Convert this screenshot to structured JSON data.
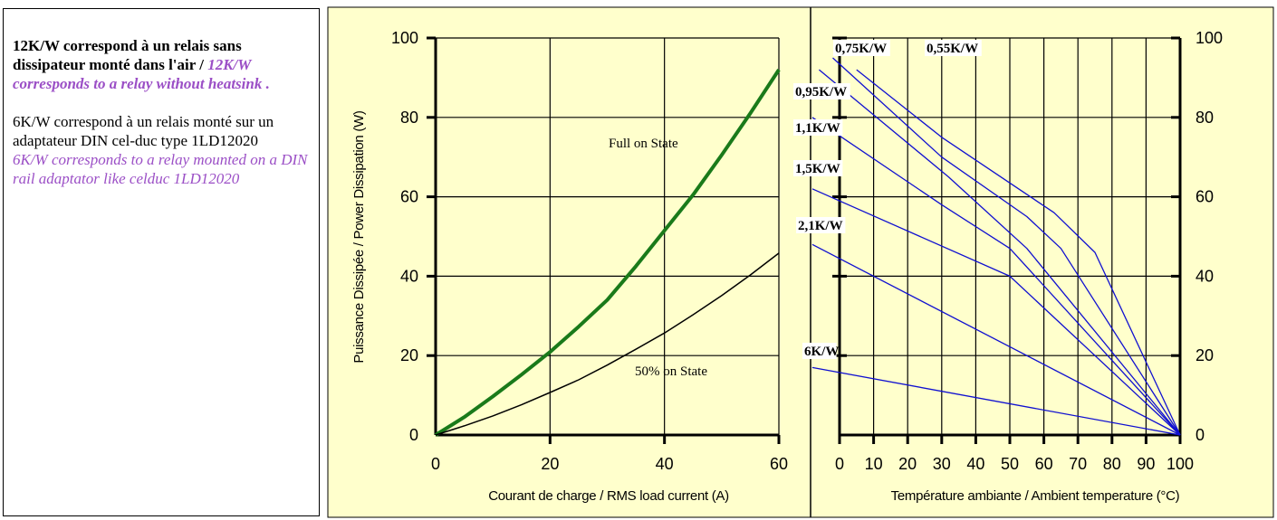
{
  "side_panel": {
    "p1_fr": "12K/W correspond à un relais sans dissipateur monté dans l'air /",
    "p1_en": "12K/W corresponds to a relay without heatsink .",
    "p2_fr": "6K/W correspond à un relais monté sur un adaptateur DIN cel-duc type 1LD12020",
    "p2_en": "6K/W corresponds to a relay mounted on a DIN rail adaptator like celduc 1LD12020"
  },
  "colors": {
    "plot_bg": "#ffffcc",
    "full_on_state": "#1a7a1a",
    "fifty_on_state": "#000000",
    "thermal_lines": "#1010d0",
    "english_text": "#9b4fc6"
  },
  "chart_data": [
    {
      "type": "line",
      "xlabel": "Courant de charge / RMS load current (A)",
      "ylabel": "Puissance Dissipée / Power Dissipation (W)",
      "xlim": [
        0,
        60
      ],
      "ylim": [
        0,
        100
      ],
      "x_ticks": [
        "0",
        "20",
        "40",
        "60"
      ],
      "y_ticks": [
        "0",
        "20",
        "40",
        "60",
        "80",
        "100"
      ],
      "grid": true,
      "series": [
        {
          "name": "Full on State",
          "x": [
            0,
            5,
            10,
            15,
            20,
            25,
            30,
            35,
            40,
            45,
            50,
            55,
            60
          ],
          "y": [
            0,
            4.5,
            9.7,
            15.2,
            20.9,
            27.3,
            34.0,
            42.5,
            51.5,
            60.5,
            70.5,
            81.0,
            92.0
          ]
        },
        {
          "name": "50% on State",
          "x": [
            0,
            5,
            10,
            15,
            20,
            25,
            30,
            35,
            40,
            45,
            50,
            55,
            60
          ],
          "y": [
            0,
            2.3,
            4.8,
            7.6,
            10.7,
            13.9,
            17.6,
            21.6,
            25.7,
            30.3,
            35.1,
            40.3,
            45.8
          ]
        }
      ]
    },
    {
      "type": "line",
      "xlabel": "Température ambiante / Ambient temperature (°C)",
      "xlim": [
        0,
        100
      ],
      "ylim": [
        0,
        100
      ],
      "x_ticks": [
        "0",
        "10",
        "20",
        "30",
        "40",
        "50",
        "60",
        "70",
        "80",
        "90",
        "100"
      ],
      "y_ticks": [
        "0",
        "20",
        "40",
        "60",
        "80",
        "100"
      ],
      "grid": true,
      "series": [
        {
          "name": "0,55K/W",
          "x": [
            5,
            30,
            63,
            75,
            100
          ],
          "y": [
            92,
            75,
            56,
            46,
            0
          ]
        },
        {
          "name": "0,75K/W",
          "x": [
            -2,
            30,
            55,
            65,
            100
          ],
          "y": [
            95,
            70,
            55,
            47,
            0
          ]
        },
        {
          "name": "0,95K/W",
          "x": [
            -6,
            32,
            55,
            100
          ],
          "y": [
            92,
            65,
            47,
            0
          ]
        },
        {
          "name": "1,1K/W",
          "x": [
            -8,
            30,
            50,
            100
          ],
          "y": [
            80,
            58,
            47,
            0
          ]
        },
        {
          "name": "1,5K/W",
          "x": [
            -8,
            50,
            100
          ],
          "y": [
            62,
            40,
            0
          ]
        },
        {
          "name": "2,1K/W",
          "x": [
            -8,
            100
          ],
          "y": [
            48,
            0
          ]
        },
        {
          "name": "6K/W",
          "x": [
            -8,
            100
          ],
          "y": [
            17,
            0
          ]
        }
      ]
    }
  ],
  "annotations": {
    "full_on_state": "Full on State",
    "fifty_on_state": "50% on State"
  }
}
